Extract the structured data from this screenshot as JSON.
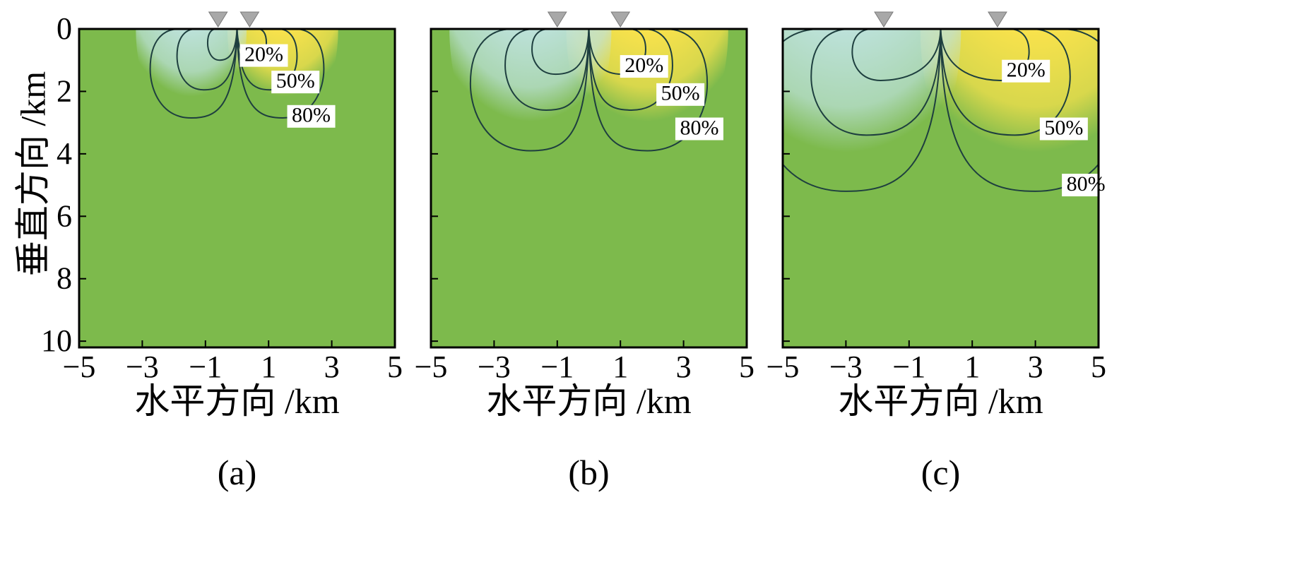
{
  "chart_data": {
    "type": "heatmap",
    "shared": {
      "ylabel": "垂直方向 /km",
      "xlabel": "水平方向 /km",
      "xlim": [
        -5,
        5
      ],
      "ylim": [
        0,
        10.2
      ],
      "xticks": [
        -5,
        -3,
        -1,
        1,
        3,
        5
      ],
      "xtick_labels": [
        "−5",
        "−3",
        "−1",
        "1",
        "3",
        "5"
      ],
      "yticks": [
        0,
        2,
        4,
        6,
        8,
        10
      ],
      "ytick_labels": [
        "0",
        "2",
        "4",
        "6",
        "8",
        "10"
      ],
      "contour_levels": [
        "20%",
        "50%",
        "80%"
      ],
      "colors": {
        "background": "#7dba4c",
        "positive_core": "#e8202a",
        "positive_mid": "#f5a623",
        "positive_outer": "#ffe44c",
        "negative_core": "#7a3aa3",
        "negative_mid": "#2aa6de",
        "negative_outer": "#bfe3e0",
        "contour": "#1e3f3f",
        "receiver": "#a8a8a8"
      }
    },
    "panels": [
      {
        "label": "(a)",
        "receivers_x": [
          -0.6,
          0.4
        ],
        "contours": [
          {
            "level": "20%",
            "center_x": 0.55,
            "depth": 1.0,
            "half_width": 0.38
          },
          {
            "level": "50%",
            "center_x": 1.05,
            "depth": 1.95,
            "half_width": 0.85
          },
          {
            "level": "80%",
            "center_x": 1.45,
            "depth": 2.85,
            "half_width": 1.3
          }
        ],
        "labels_pos": [
          {
            "x": 0.85,
            "y": 0.85
          },
          {
            "x": 1.85,
            "y": 1.7
          },
          {
            "x": 2.35,
            "y": 2.8
          }
        ]
      },
      {
        "label": "(b)",
        "receivers_x": [
          -1.0,
          1.0
        ],
        "contours": [
          {
            "level": "20%",
            "center_x": 1.05,
            "depth": 1.45,
            "half_width": 0.75
          },
          {
            "level": "50%",
            "center_x": 1.35,
            "depth": 2.6,
            "half_width": 1.3
          },
          {
            "level": "80%",
            "center_x": 1.85,
            "depth": 3.9,
            "half_width": 1.9
          }
        ],
        "labels_pos": [
          {
            "x": 1.75,
            "y": 1.2
          },
          {
            "x": 2.9,
            "y": 2.1
          },
          {
            "x": 3.5,
            "y": 3.2
          }
        ]
      },
      {
        "label": "(c)",
        "receivers_x": [
          -1.8,
          1.8
        ],
        "contours": [
          {
            "level": "20%",
            "center_x": 1.9,
            "depth": 1.65,
            "half_width": 0.9
          },
          {
            "level": "50%",
            "center_x": 2.35,
            "depth": 3.4,
            "half_width": 1.75
          },
          {
            "level": "80%",
            "center_x": 3.0,
            "depth": 5.2,
            "half_width": 2.7
          }
        ],
        "labels_pos": [
          {
            "x": 2.7,
            "y": 1.35
          },
          {
            "x": 3.9,
            "y": 3.2
          },
          {
            "x": 4.6,
            "y": 5.0
          }
        ]
      }
    ]
  }
}
